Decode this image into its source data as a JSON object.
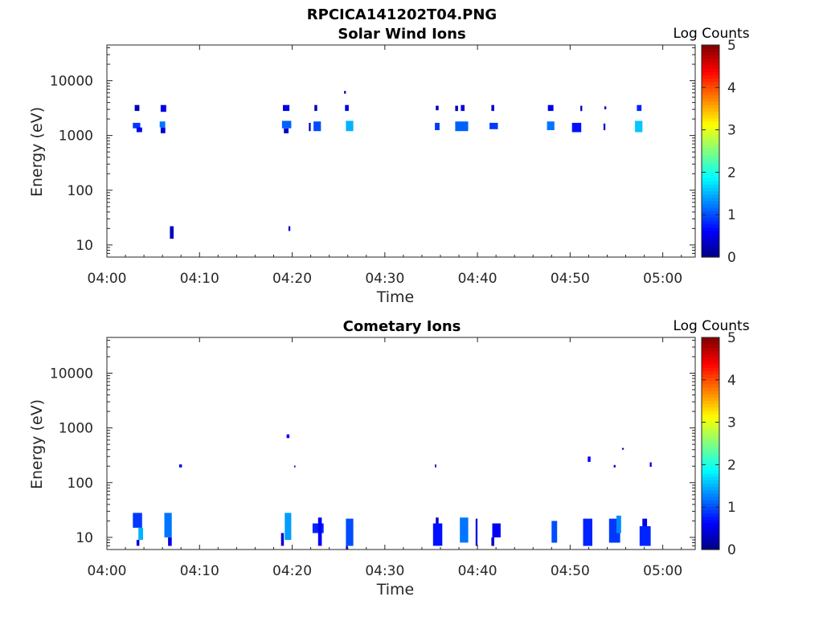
{
  "figure": {
    "title": "RPCICA141202T04.PNG"
  },
  "chart_data": [
    {
      "type": "heatmap",
      "title": "Solar Wind Ions",
      "xlabel": "Time",
      "ylabel": "Energy (eV)",
      "x_tick_labels": [
        "04:00",
        "04:10",
        "04:20",
        "04:30",
        "04:40",
        "04:50",
        "05:00"
      ],
      "xlim_min": [
        0,
        63.5
      ],
      "y_scale": "log",
      "ylim": [
        6,
        45000
      ],
      "y_ticks": [
        10,
        100,
        1000,
        10000
      ],
      "y_tick_labels": [
        "10",
        "100",
        "1000",
        "10000"
      ],
      "colorbar": {
        "label": "Log Counts",
        "range": [
          0,
          5
        ],
        "ticks": [
          "0",
          "1",
          "2",
          "3",
          "4",
          "5"
        ],
        "colormap": "jet"
      },
      "grid": false,
      "cells": [
        {
          "t": 3.0,
          "dt": 0.5,
          "e0": 2800,
          "e1": 3600,
          "v": 0.3
        },
        {
          "t": 2.8,
          "dt": 0.8,
          "e0": 1350,
          "e1": 1700,
          "v": 0.9
        },
        {
          "t": 3.2,
          "dt": 0.6,
          "e0": 1150,
          "e1": 1400,
          "v": 0.6
        },
        {
          "t": 5.8,
          "dt": 0.6,
          "e0": 2700,
          "e1": 3600,
          "v": 0.5
        },
        {
          "t": 5.7,
          "dt": 0.6,
          "e0": 1400,
          "e1": 1800,
          "v": 1.2
        },
        {
          "t": 5.8,
          "dt": 0.5,
          "e0": 1100,
          "e1": 1400,
          "v": 0.4
        },
        {
          "t": 6.8,
          "dt": 0.4,
          "e0": 13,
          "e1": 22,
          "v": 0.3
        },
        {
          "t": 19.0,
          "dt": 0.7,
          "e0": 2800,
          "e1": 3600,
          "v": 0.5
        },
        {
          "t": 18.9,
          "dt": 1.0,
          "e0": 1350,
          "e1": 1850,
          "v": 1.1
        },
        {
          "t": 19.1,
          "dt": 0.5,
          "e0": 1100,
          "e1": 1350,
          "v": 0.4
        },
        {
          "t": 19.6,
          "dt": 0.2,
          "e0": 18,
          "e1": 22,
          "v": 0.3
        },
        {
          "t": 21.8,
          "dt": 0.2,
          "e0": 1200,
          "e1": 1700,
          "v": 0.4
        },
        {
          "t": 22.4,
          "dt": 0.3,
          "e0": 2800,
          "e1": 3600,
          "v": 0.3
        },
        {
          "t": 22.3,
          "dt": 0.8,
          "e0": 1200,
          "e1": 1800,
          "v": 1.0
        },
        {
          "t": 25.6,
          "dt": 0.2,
          "e0": 5800,
          "e1": 6500,
          "v": 0.3
        },
        {
          "t": 25.7,
          "dt": 0.4,
          "e0": 2800,
          "e1": 3600,
          "v": 0.5
        },
        {
          "t": 25.8,
          "dt": 0.8,
          "e0": 1200,
          "e1": 1850,
          "v": 1.5
        },
        {
          "t": 35.5,
          "dt": 0.3,
          "e0": 2900,
          "e1": 3500,
          "v": 0.3
        },
        {
          "t": 35.4,
          "dt": 0.5,
          "e0": 1250,
          "e1": 1700,
          "v": 0.9
        },
        {
          "t": 37.6,
          "dt": 0.3,
          "e0": 2800,
          "e1": 3500,
          "v": 0.3
        },
        {
          "t": 38.2,
          "dt": 0.4,
          "e0": 2800,
          "e1": 3600,
          "v": 0.5
        },
        {
          "t": 37.6,
          "dt": 1.4,
          "e0": 1200,
          "e1": 1800,
          "v": 1.1
        },
        {
          "t": 41.5,
          "dt": 0.3,
          "e0": 2800,
          "e1": 3600,
          "v": 0.4
        },
        {
          "t": 41.3,
          "dt": 0.9,
          "e0": 1300,
          "e1": 1700,
          "v": 0.9
        },
        {
          "t": 47.6,
          "dt": 0.6,
          "e0": 2800,
          "e1": 3600,
          "v": 0.5
        },
        {
          "t": 47.5,
          "dt": 0.8,
          "e0": 1250,
          "e1": 1800,
          "v": 1.2
        },
        {
          "t": 50.2,
          "dt": 1.0,
          "e0": 1150,
          "e1": 1700,
          "v": 0.7
        },
        {
          "t": 51.1,
          "dt": 0.2,
          "e0": 2800,
          "e1": 3500,
          "v": 0.3
        },
        {
          "t": 53.7,
          "dt": 0.2,
          "e0": 3000,
          "e1": 3400,
          "v": 0.2
        },
        {
          "t": 53.6,
          "dt": 0.2,
          "e0": 1250,
          "e1": 1650,
          "v": 0.4
        },
        {
          "t": 57.2,
          "dt": 0.5,
          "e0": 2800,
          "e1": 3600,
          "v": 0.8
        },
        {
          "t": 57.0,
          "dt": 0.8,
          "e0": 1150,
          "e1": 1850,
          "v": 1.6
        }
      ]
    },
    {
      "type": "heatmap",
      "title": "Cometary Ions",
      "xlabel": "Time",
      "ylabel": "Energy (eV)",
      "x_tick_labels": [
        "04:00",
        "04:10",
        "04:20",
        "04:30",
        "04:40",
        "04:50",
        "05:00"
      ],
      "xlim_min": [
        0,
        63.5
      ],
      "y_scale": "log",
      "ylim": [
        6,
        45000
      ],
      "y_ticks": [
        10,
        100,
        1000,
        10000
      ],
      "y_tick_labels": [
        "10",
        "100",
        "1000",
        "10000"
      ],
      "colorbar": {
        "label": "Log Counts",
        "range": [
          0,
          5
        ],
        "ticks": [
          "0",
          "1",
          "2",
          "3",
          "4",
          "5"
        ],
        "colormap": "jet"
      },
      "grid": false,
      "cells": [
        {
          "t": 2.8,
          "dt": 1.0,
          "e0": 15,
          "e1": 28,
          "v": 0.9
        },
        {
          "t": 3.4,
          "dt": 0.5,
          "e0": 9,
          "e1": 15,
          "v": 1.5
        },
        {
          "t": 3.2,
          "dt": 0.3,
          "e0": 7,
          "e1": 9,
          "v": 0.5
        },
        {
          "t": 6.2,
          "dt": 0.8,
          "e0": 10,
          "e1": 28,
          "v": 1.2
        },
        {
          "t": 6.6,
          "dt": 0.4,
          "e0": 7,
          "e1": 10,
          "v": 0.5
        },
        {
          "t": 7.8,
          "dt": 0.3,
          "e0": 190,
          "e1": 215,
          "v": 0.5
        },
        {
          "t": 18.8,
          "dt": 0.3,
          "e0": 7,
          "e1": 12,
          "v": 0.4
        },
        {
          "t": 19.2,
          "dt": 0.7,
          "e0": 9,
          "e1": 28,
          "v": 1.4
        },
        {
          "t": 19.4,
          "dt": 0.3,
          "e0": 650,
          "e1": 760,
          "v": 0.6
        },
        {
          "t": 20.2,
          "dt": 0.15,
          "e0": 190,
          "e1": 205,
          "v": 0.3
        },
        {
          "t": 22.2,
          "dt": 1.2,
          "e0": 12,
          "e1": 18,
          "v": 0.8
        },
        {
          "t": 22.8,
          "dt": 0.4,
          "e0": 7,
          "e1": 23,
          "v": 0.6
        },
        {
          "t": 25.8,
          "dt": 0.8,
          "e0": 7,
          "e1": 22,
          "v": 1.0
        },
        {
          "t": 25.8,
          "dt": 0.2,
          "e0": 6,
          "e1": 7,
          "v": 0.4
        },
        {
          "t": 35.4,
          "dt": 0.15,
          "e0": 190,
          "e1": 215,
          "v": 0.3
        },
        {
          "t": 35.2,
          "dt": 1.0,
          "e0": 7,
          "e1": 18,
          "v": 0.7
        },
        {
          "t": 35.5,
          "dt": 0.3,
          "e0": 18,
          "e1": 23,
          "v": 0.4
        },
        {
          "t": 38.1,
          "dt": 0.9,
          "e0": 8,
          "e1": 23,
          "v": 1.2
        },
        {
          "t": 39.8,
          "dt": 0.2,
          "e0": 7,
          "e1": 22,
          "v": 0.5
        },
        {
          "t": 41.6,
          "dt": 0.9,
          "e0": 10,
          "e1": 18,
          "v": 0.6
        },
        {
          "t": 41.5,
          "dt": 0.3,
          "e0": 7,
          "e1": 10,
          "v": 0.4
        },
        {
          "t": 48.0,
          "dt": 0.6,
          "e0": 8,
          "e1": 20,
          "v": 1.0
        },
        {
          "t": 51.4,
          "dt": 1.0,
          "e0": 7,
          "e1": 22,
          "v": 0.8
        },
        {
          "t": 51.9,
          "dt": 0.3,
          "e0": 240,
          "e1": 300,
          "v": 0.6
        },
        {
          "t": 54.7,
          "dt": 0.2,
          "e0": 190,
          "e1": 210,
          "v": 0.3
        },
        {
          "t": 54.2,
          "dt": 1.2,
          "e0": 8,
          "e1": 22,
          "v": 0.9
        },
        {
          "t": 55.0,
          "dt": 0.5,
          "e0": 12,
          "e1": 25,
          "v": 1.3
        },
        {
          "t": 55.6,
          "dt": 0.2,
          "e0": 400,
          "e1": 430,
          "v": 0.3
        },
        {
          "t": 57.5,
          "dt": 1.2,
          "e0": 7,
          "e1": 16,
          "v": 0.8
        },
        {
          "t": 57.8,
          "dt": 0.5,
          "e0": 16,
          "e1": 22,
          "v": 0.5
        },
        {
          "t": 58.6,
          "dt": 0.2,
          "e0": 195,
          "e1": 235,
          "v": 0.4
        }
      ]
    }
  ]
}
